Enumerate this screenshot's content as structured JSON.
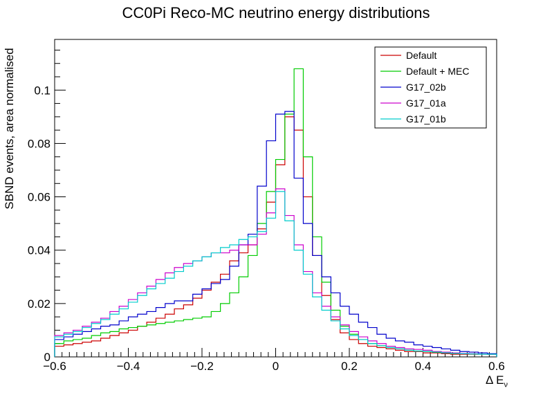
{
  "chart_data": {
    "type": "line",
    "title": "CC0Pi Reco-MC neutrino energy distributions",
    "xlabel": "Δ E",
    "xlabel_subscript": "ν",
    "ylabel": "SBND events, area normalised",
    "xlim": [
      -0.6,
      0.6
    ],
    "ylim": [
      0,
      0.119
    ],
    "x_ticks": [
      -0.6,
      -0.4,
      -0.2,
      0,
      0.2,
      0.4,
      0.6
    ],
    "x_tick_labels": [
      "−0.6",
      "−0.4",
      "−0.2",
      "0",
      "0.2",
      "0.4",
      "0.6"
    ],
    "y_ticks": [
      0,
      0.02,
      0.04,
      0.06,
      0.08,
      0.1
    ],
    "y_tick_labels": [
      "0",
      "0.02",
      "0.04",
      "0.06",
      "0.08",
      "0.1"
    ],
    "legend_position": "top-right",
    "grid": false,
    "bin_edges": [
      -0.6,
      -0.575,
      -0.55,
      -0.525,
      -0.5,
      -0.475,
      -0.45,
      -0.425,
      -0.4,
      -0.375,
      -0.35,
      -0.325,
      -0.3,
      -0.275,
      -0.25,
      -0.225,
      -0.2,
      -0.175,
      -0.15,
      -0.125,
      -0.1,
      -0.075,
      -0.05,
      -0.025,
      0,
      0.025,
      0.05,
      0.075,
      0.1,
      0.125,
      0.15,
      0.175,
      0.2,
      0.225,
      0.25,
      0.275,
      0.3,
      0.325,
      0.35,
      0.375,
      0.4,
      0.425,
      0.45,
      0.475,
      0.5,
      0.525,
      0.55,
      0.575,
      0.6
    ],
    "series": [
      {
        "name": "Default",
        "color": "#cc0000",
        "values": [
          0.004,
          0.0045,
          0.005,
          0.0055,
          0.006,
          0.007,
          0.008,
          0.009,
          0.01,
          0.0115,
          0.013,
          0.0145,
          0.016,
          0.018,
          0.0195,
          0.022,
          0.025,
          0.028,
          0.031,
          0.036,
          0.039,
          0.042,
          0.048,
          0.058,
          0.072,
          0.09,
          0.085,
          0.06,
          0.038,
          0.023,
          0.014,
          0.009,
          0.0065,
          0.005,
          0.004,
          0.0035,
          0.003,
          0.0025,
          0.002,
          0.002,
          0.0015,
          0.0015,
          0.0012,
          0.001,
          0.001,
          0.001,
          0.001,
          0.001
        ]
      },
      {
        "name": "Default + MEC",
        "color": "#00cc00",
        "values": [
          0.005,
          0.006,
          0.0065,
          0.007,
          0.008,
          0.009,
          0.0095,
          0.0105,
          0.011,
          0.0115,
          0.012,
          0.0125,
          0.013,
          0.0135,
          0.014,
          0.0145,
          0.015,
          0.017,
          0.02,
          0.024,
          0.03,
          0.038,
          0.05,
          0.062,
          0.074,
          0.091,
          0.108,
          0.075,
          0.045,
          0.028,
          0.0175,
          0.0115,
          0.0085,
          0.0065,
          0.005,
          0.0042,
          0.0035,
          0.003,
          0.0025,
          0.0022,
          0.002,
          0.0017,
          0.0015,
          0.0013,
          0.0012,
          0.0011,
          0.001,
          0.001
        ]
      },
      {
        "name": "G17_02b",
        "color": "#0000cc",
        "values": [
          0.0065,
          0.0075,
          0.0085,
          0.0095,
          0.0105,
          0.0115,
          0.012,
          0.0135,
          0.015,
          0.016,
          0.017,
          0.0185,
          0.02,
          0.021,
          0.021,
          0.0235,
          0.0255,
          0.0275,
          0.029,
          0.034,
          0.042,
          0.046,
          0.064,
          0.081,
          0.091,
          0.092,
          0.067,
          0.05,
          0.038,
          0.03,
          0.024,
          0.019,
          0.016,
          0.013,
          0.011,
          0.0085,
          0.007,
          0.006,
          0.0055,
          0.0045,
          0.004,
          0.0035,
          0.003,
          0.0025,
          0.002,
          0.0018,
          0.0015,
          0.0012
        ]
      },
      {
        "name": "G17_01a",
        "color": "#cc00cc",
        "values": [
          0.008,
          0.009,
          0.01,
          0.0115,
          0.013,
          0.0145,
          0.017,
          0.019,
          0.0215,
          0.024,
          0.0265,
          0.029,
          0.0315,
          0.0335,
          0.035,
          0.036,
          0.0375,
          0.039,
          0.039,
          0.04,
          0.042,
          0.042,
          0.046,
          0.054,
          0.063,
          0.053,
          0.042,
          0.032,
          0.024,
          0.019,
          0.015,
          0.012,
          0.0095,
          0.0075,
          0.006,
          0.005,
          0.004,
          0.0035,
          0.003,
          0.0028,
          0.0025,
          0.002,
          0.0018,
          0.0015,
          0.0013,
          0.0012,
          0.001,
          0.001
        ]
      },
      {
        "name": "G17_01b",
        "color": "#00cccc",
        "values": [
          0.0075,
          0.0085,
          0.0095,
          0.011,
          0.0125,
          0.014,
          0.016,
          0.018,
          0.0205,
          0.023,
          0.0255,
          0.0275,
          0.0295,
          0.032,
          0.034,
          0.036,
          0.0375,
          0.039,
          0.041,
          0.042,
          0.044,
          0.045,
          0.047,
          0.052,
          0.062,
          0.051,
          0.04,
          0.031,
          0.0225,
          0.0175,
          0.0135,
          0.0105,
          0.008,
          0.0065,
          0.005,
          0.0042,
          0.0035,
          0.003,
          0.0025,
          0.0022,
          0.002,
          0.0018,
          0.0015,
          0.0013,
          0.0012,
          0.0011,
          0.001,
          0.001
        ]
      }
    ]
  }
}
